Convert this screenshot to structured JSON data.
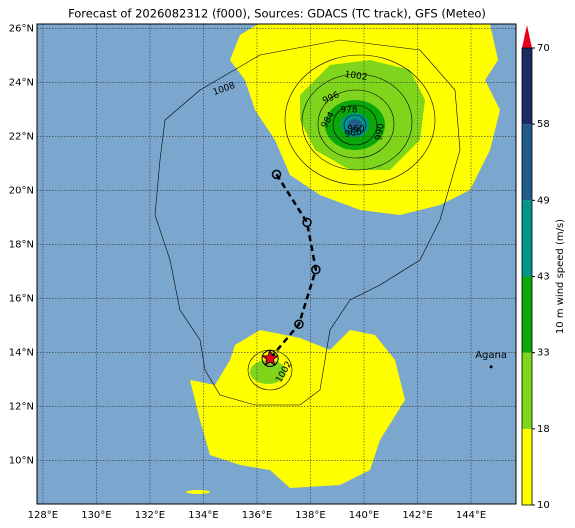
{
  "chart_data": {
    "type": "map",
    "title": "Forecast of 2026082312 (f000), Sources: GDACS (TC track), GFS (Meteo)",
    "xlim": [
      127.78,
      145.68
    ],
    "ylim": [
      8.39,
      26.17
    ],
    "xticks": [
      {
        "value": 128,
        "label": "128°E"
      },
      {
        "value": 130,
        "label": "130°E"
      },
      {
        "value": 132,
        "label": "132°E"
      },
      {
        "value": 134,
        "label": "134°E"
      },
      {
        "value": 136,
        "label": "136°E"
      },
      {
        "value": 138,
        "label": "138°E"
      },
      {
        "value": 140,
        "label": "140°E"
      },
      {
        "value": 142,
        "label": "142°E"
      },
      {
        "value": 144,
        "label": "144°E"
      }
    ],
    "yticks": [
      {
        "value": 10,
        "label": "10°N"
      },
      {
        "value": 12,
        "label": "12°N"
      },
      {
        "value": 14,
        "label": "14°N"
      },
      {
        "value": 16,
        "label": "16°N"
      },
      {
        "value": 18,
        "label": "18°N"
      },
      {
        "value": 20,
        "label": "20°N"
      },
      {
        "value": 22,
        "label": "22°N"
      },
      {
        "value": 24,
        "label": "24°N"
      },
      {
        "value": 26,
        "label": "26°N"
      }
    ],
    "grid": true,
    "colorbar": {
      "label": "10 m wind speed (m/s)",
      "ticks": [
        10,
        18,
        33,
        43,
        49,
        58,
        70
      ],
      "colors": [
        "#ffff00",
        "#7fd41c",
        "#0aa60a",
        "#00978a",
        "#1f5c8c",
        "#1c2c62"
      ],
      "extend_color": "#e8001a"
    },
    "contour_labels": [
      1008,
      1002,
      996,
      978,
      984,
      990,
      966,
      960,
      1002
    ],
    "track": {
      "color": "#000000",
      "lon": [
        136.73,
        137.87,
        138.2,
        137.57,
        136.49
      ],
      "lat": [
        20.6,
        18.82,
        17.07,
        15.05,
        13.78
      ]
    },
    "places": [
      {
        "name": "Agana",
        "lon": 144.75,
        "lat": 13.47
      }
    ]
  }
}
